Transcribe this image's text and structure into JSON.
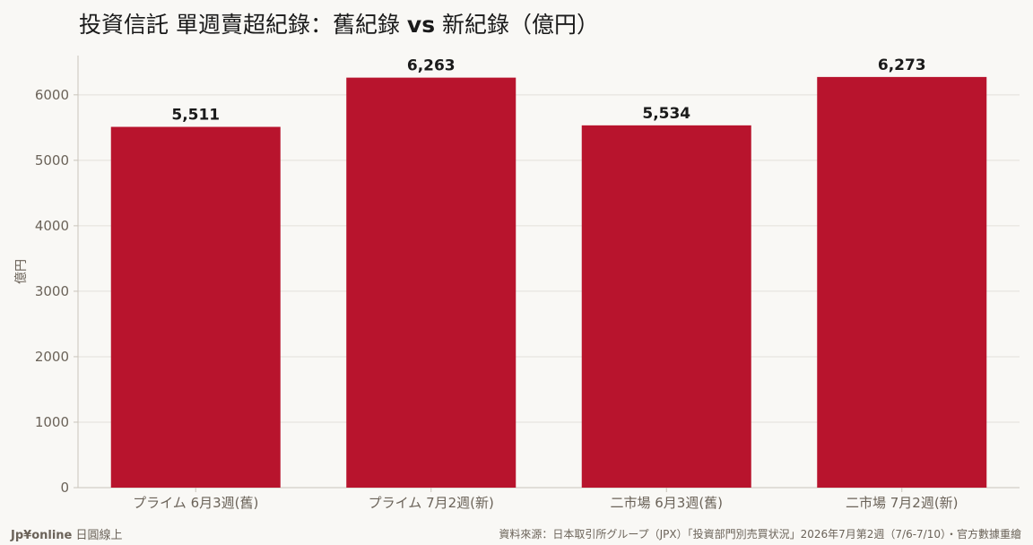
{
  "title": {
    "part1": "投資信託 單週賣超紀錄：舊紀錄 ",
    "part2": "vs",
    "part3": " 新紀錄（億円）"
  },
  "footer": {
    "brand": "Jp¥online",
    "brand_suffix": " 日圓線上",
    "source": "資料來源：日本取引所グループ（JPX）「投資部門別売買状況」2026年7月第2週（7/6-7/10）・官方數據重繪"
  },
  "chart_data": {
    "type": "bar",
    "categories": [
      "プライム 6月3週(舊)",
      "プライム 7月2週(新)",
      "二市場 6月3週(舊)",
      "二市場 7月2週(新)"
    ],
    "values": [
      5511,
      6263,
      5534,
      6273
    ],
    "value_labels": [
      "5,511",
      "6,263",
      "5,534",
      "6,273"
    ],
    "title": "投資信託 單週賣超紀錄：舊紀錄 vs 新紀錄（億円）",
    "xlabel": "",
    "ylabel": "億円",
    "ylim": [
      0,
      6600
    ],
    "yticks": [
      0,
      1000,
      2000,
      3000,
      4000,
      5000,
      6000
    ],
    "ytick_labels": [
      "0",
      "1000",
      "2000",
      "3000",
      "4000",
      "5000",
      "6000"
    ],
    "grid": true,
    "bar_color": "#b8142d",
    "grid_color": "#e3e0da",
    "axis_color": "#c9c4bb",
    "background": "#f9f8f5"
  }
}
